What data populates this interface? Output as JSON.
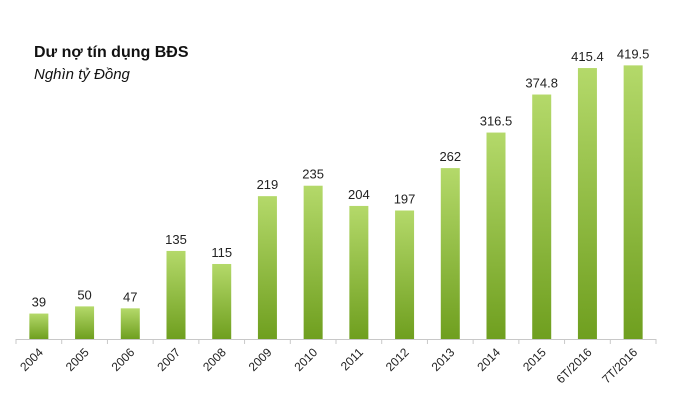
{
  "chart_data": {
    "type": "bar",
    "title": "Dư nợ tín dụng BĐS",
    "subtitle": "Nghìn tỷ Đồng",
    "categories": [
      "2004",
      "2005",
      "2006",
      "2007",
      "2008",
      "2009",
      "2010",
      "2011",
      "2012",
      "2013",
      "2014",
      "2015",
      "6T/2016",
      "7T/2016"
    ],
    "values": [
      39,
      50,
      47,
      135,
      115,
      219,
      235,
      204,
      197,
      262,
      316.5,
      374.8,
      415.4,
      419.5
    ],
    "value_labels": [
      "39",
      "50",
      "47",
      "135",
      "115",
      "219",
      "235",
      "204",
      "197",
      "262",
      "316.5",
      "374.8",
      "415.4",
      "419.5"
    ],
    "ylim": [
      0,
      440
    ],
    "grid": false,
    "legend": "none",
    "colors": {
      "bar_top": "#b4d96a",
      "bar_bottom": "#6f9f1f",
      "axis": "#c8c8c8",
      "text": "#222222"
    }
  }
}
